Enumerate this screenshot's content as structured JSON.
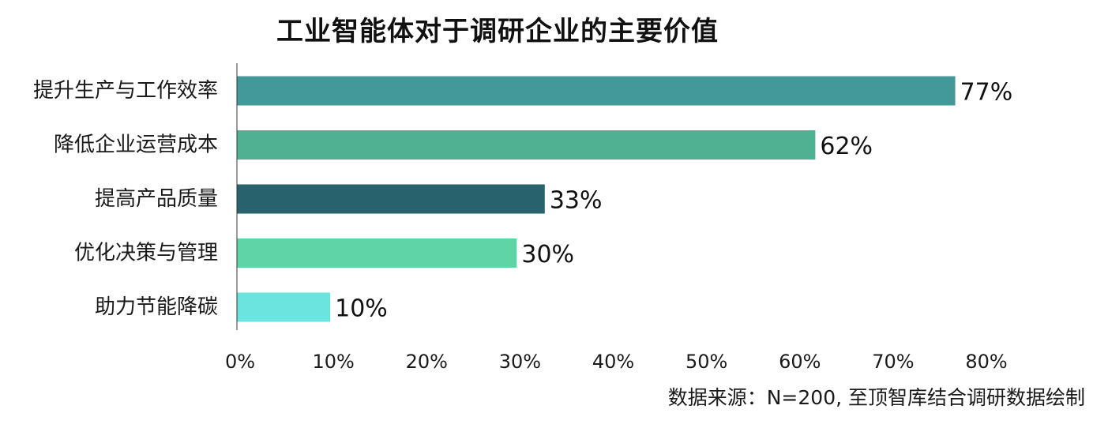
{
  "chart_data": {
    "type": "bar",
    "orientation": "horizontal",
    "title": "工业智能体对于调研企业的主要价值",
    "categories": [
      "提升生产与工作效率",
      "降低企业运营成本",
      "提高产品质量",
      "优化决策与管理",
      "助力节能降碳"
    ],
    "values": [
      77,
      62,
      33,
      30,
      10
    ],
    "value_labels": [
      "77%",
      "62%",
      "33%",
      "30%",
      "10%"
    ],
    "bar_colors": [
      "#43989a",
      "#4fb192",
      "#28636d",
      "#5fd4a6",
      "#6be3df"
    ],
    "xlim": [
      0,
      80
    ],
    "xticks": [
      0,
      10,
      20,
      30,
      40,
      50,
      60,
      70,
      80
    ],
    "xtick_labels": [
      "0%",
      "10%",
      "20%",
      "30%",
      "40%",
      "50%",
      "60%",
      "70%",
      "80%"
    ],
    "xlabel": "",
    "ylabel": "",
    "grid": false,
    "legend": "none"
  },
  "source_note": "数据来源：N=200, 至顶智库结合调研数据绘制"
}
